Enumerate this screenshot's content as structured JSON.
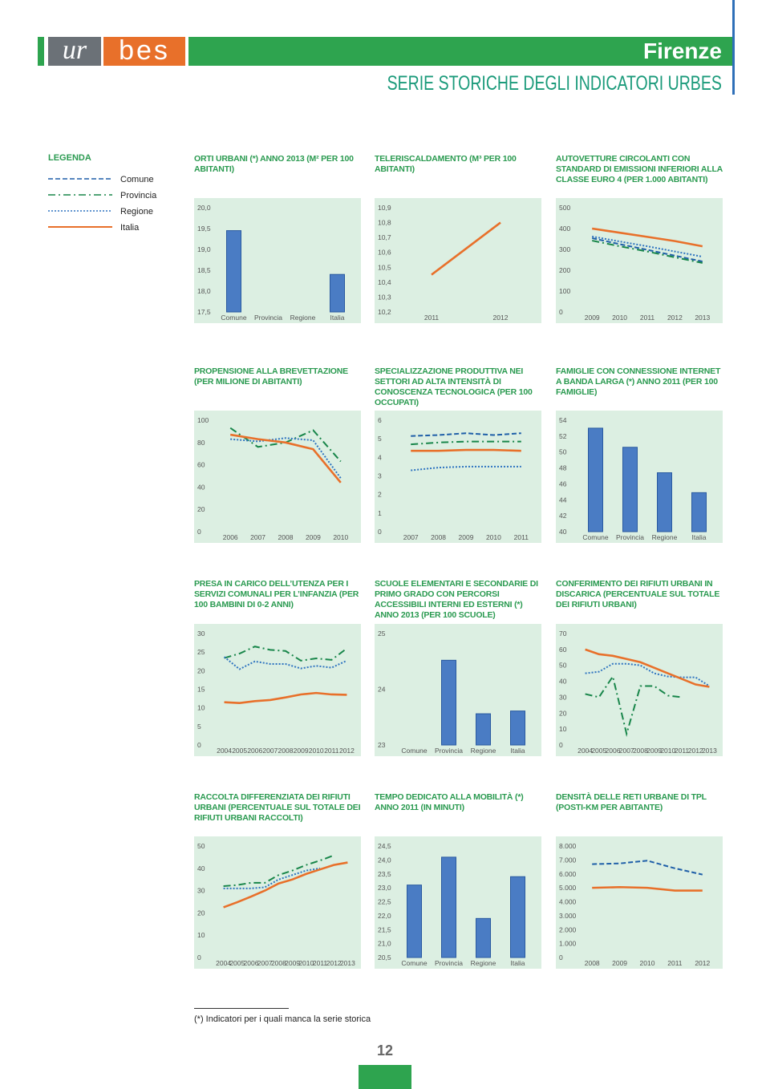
{
  "header": {
    "logo_left": "ur",
    "logo_right": "bes",
    "city": "Firenze",
    "subtitle": "SERIE STORICHE DEGLI INDICATORI URBES"
  },
  "legend": {
    "title": "LEGENDA",
    "items": [
      {
        "name": "Comune",
        "color": "#1f5fa8",
        "dash": "dashed"
      },
      {
        "name": "Provincia",
        "color": "#18864a",
        "dash": "dashdot"
      },
      {
        "name": "Regione",
        "color": "#2f74c0",
        "dash": "dotted"
      },
      {
        "name": "Italia",
        "color": "#e8702a",
        "dash": "solid"
      }
    ]
  },
  "chart_data": [
    {
      "type": "bar",
      "title": "ORTI URBANI (*) ANNO 2013 (M² PER 100 ABITANTI)",
      "color": "#4a7cc4",
      "categories": [
        "Comune",
        "Provincia",
        "Regione",
        "Italia"
      ],
      "values": [
        19.45,
        null,
        null,
        18.4
      ],
      "ylim": [
        17.5,
        20
      ],
      "yticks": [
        {
          "value": 17.5,
          "label": "17,5"
        },
        {
          "value": 18,
          "label": "18,0"
        },
        {
          "value": 18.5,
          "label": "18,5"
        },
        {
          "value": 19,
          "label": "19,0"
        },
        {
          "value": 19.5,
          "label": "19,5"
        },
        {
          "value": 20,
          "label": "20,0"
        }
      ]
    },
    {
      "type": "line",
      "title": "TELERISCALDAMENTO (M³ PER 100 ABITANTI)",
      "categories": [
        "2011",
        "2012"
      ],
      "series": [
        {
          "name": "Italia",
          "values": [
            10.45,
            10.8
          ]
        }
      ],
      "ylim": [
        10.2,
        10.9
      ],
      "yticks": [
        {
          "value": 10.2,
          "label": "10,2"
        },
        {
          "value": 10.3,
          "label": "10,3"
        },
        {
          "value": 10.4,
          "label": "10,4"
        },
        {
          "value": 10.5,
          "label": "10,5"
        },
        {
          "value": 10.6,
          "label": "10,6"
        },
        {
          "value": 10.7,
          "label": "10,7"
        },
        {
          "value": 10.8,
          "label": "10,8"
        },
        {
          "value": 10.9,
          "label": "10,9"
        }
      ]
    },
    {
      "type": "line",
      "title": "AUTOVETTURE CIRCOLANTI CON STANDARD DI EMISSIONI INFERIORI ALLA CLASSE EURO 4 (PER 1.000 ABITANTI)",
      "categories": [
        "2009",
        "2010",
        "2011",
        "2012",
        "2013"
      ],
      "series": [
        {
          "name": "Comune",
          "values": [
            354,
            325,
            298,
            270,
            242
          ]
        },
        {
          "name": "Provincia",
          "values": [
            342,
            315,
            290,
            262,
            235
          ]
        },
        {
          "name": "Regione",
          "values": [
            362,
            338,
            315,
            290,
            265
          ]
        },
        {
          "name": "Italia",
          "values": [
            400,
            380,
            360,
            340,
            315
          ]
        }
      ],
      "ylim": [
        0,
        500
      ],
      "yticks": [
        0,
        100,
        200,
        300,
        400,
        500
      ]
    },
    {
      "type": "line",
      "title": "PROPENSIONE ALLA BREVETTAZIONE (PER MILIONE DI ABITANTI)",
      "categories": [
        "2006",
        "2007",
        "2008",
        "2009",
        "2010"
      ],
      "series": [
        {
          "name": "Provincia",
          "values": [
            93,
            76,
            80,
            91,
            63
          ]
        },
        {
          "name": "Regione",
          "values": [
            83,
            81,
            84,
            82,
            48
          ]
        },
        {
          "name": "Italia",
          "values": [
            87,
            83,
            80,
            74,
            44
          ]
        }
      ],
      "ylim": [
        0,
        100
      ],
      "yticks": [
        0,
        20,
        40,
        60,
        80,
        100
      ]
    },
    {
      "type": "line",
      "title": "SPECIALIZZAZIONE PRODUTTIVA NEI SETTORI AD ALTA INTENSITÀ DI CONOSCENZA TECNOLOGICA (PER 100 OCCUPATI)",
      "categories": [
        "2007",
        "2008",
        "2009",
        "2010",
        "2011"
      ],
      "series": [
        {
          "name": "Comune",
          "values": [
            5.15,
            5.2,
            5.3,
            5.2,
            5.3
          ]
        },
        {
          "name": "Provincia",
          "values": [
            4.7,
            4.8,
            4.85,
            4.85,
            4.85
          ]
        },
        {
          "name": "Regione",
          "values": [
            3.3,
            3.45,
            3.5,
            3.5,
            3.5
          ]
        },
        {
          "name": "Italia",
          "values": [
            4.35,
            4.35,
            4.4,
            4.4,
            4.35
          ]
        }
      ],
      "ylim": [
        0,
        6
      ],
      "yticks": [
        0,
        1,
        2,
        3,
        4,
        5,
        6
      ]
    },
    {
      "type": "bar",
      "title": "FAMIGLIE CON CONNESSIONE INTERNET A BANDA LARGA (*) ANNO 2011 (PER 100 FAMIGLIE)",
      "color": "#4a7cc4",
      "categories": [
        "Comune",
        "Provincia",
        "Regione",
        "Italia"
      ],
      "values": [
        53,
        50.6,
        47.4,
        44.9
      ],
      "ylim": [
        40,
        54
      ],
      "yticks": [
        40,
        42,
        44,
        46,
        48,
        50,
        52,
        54
      ]
    },
    {
      "type": "line",
      "title": "PRESA IN CARICO DELL’UTENZA PER I SERVIZI COMUNALI PER L’INFANZIA (PER 100 BAMBINI DI 0-2 ANNI)",
      "categories": [
        "2004",
        "2005",
        "2006",
        "2007",
        "2008",
        "2009",
        "2010",
        "2011",
        "2012"
      ],
      "series": [
        {
          "name": "Provincia",
          "values": [
            23.4,
            24.6,
            26.5,
            25.6,
            25.3,
            22.7,
            23.3,
            22.9,
            26
          ]
        },
        {
          "name": "Regione",
          "values": [
            23.7,
            20.4,
            22.5,
            21.8,
            21.8,
            20.6,
            21.3,
            20.8,
            22.7
          ]
        },
        {
          "name": "Italia",
          "values": [
            11.5,
            11.3,
            11.8,
            12.1,
            12.8,
            13.6,
            14,
            13.6,
            13.5
          ]
        }
      ],
      "ylim": [
        0,
        30
      ],
      "yticks": [
        0,
        5,
        10,
        15,
        20,
        25,
        30
      ]
    },
    {
      "type": "bar",
      "title": "SCUOLE ELEMENTARI E SECONDARIE DI PRIMO GRADO CON PERCORSI ACCESSIBILI INTERNI ED ESTERNI (*) ANNO 2013 (PER 100 SCUOLE)",
      "color": "#4a7cc4",
      "categories": [
        "Comune",
        "Provincia",
        "Regione",
        "Italia"
      ],
      "values": [
        null,
        24.52,
        23.56,
        23.61
      ],
      "ylim": [
        23,
        25
      ],
      "yticks": [
        23,
        24,
        25
      ]
    },
    {
      "type": "line",
      "title": "CONFERIMENTO DEI RIFIUTI URBANI IN DISCARICA (PERCENTUALE SUL TOTALE DEI RIFIUTI URBANI)",
      "categories": [
        "2004",
        "2005",
        "2006",
        "2007",
        "2008",
        "2009",
        "2010",
        "2011",
        "2012",
        "2013"
      ],
      "series": [
        {
          "name": "Provincia",
          "values": [
            32,
            30,
            43,
            7,
            37,
            37,
            31,
            30,
            null,
            null
          ]
        },
        {
          "name": "Regione",
          "values": [
            45,
            46,
            51,
            51,
            50,
            45,
            43,
            42.5,
            42.5,
            37
          ]
        },
        {
          "name": "Italia",
          "values": [
            60,
            57,
            56,
            54,
            52,
            48.5,
            45,
            41.5,
            38,
            36.5
          ]
        }
      ],
      "ylim": [
        0,
        70
      ],
      "yticks": [
        0,
        10,
        20,
        30,
        40,
        50,
        60,
        70
      ]
    },
    {
      "type": "line",
      "title": "RACCOLTA DIFFERENZIATA DEI RIFIUTI URBANI (PERCENTUALE SUL TOTALE DEI RIFIUTI URBANI RACCOLTI)",
      "categories": [
        "2004",
        "2005",
        "2006",
        "2007",
        "2008",
        "2009",
        "2010",
        "2011",
        "2012",
        "2013"
      ],
      "series": [
        {
          "name": "Provincia",
          "values": [
            32,
            32.5,
            33.5,
            33.5,
            37,
            39,
            41.5,
            43.5,
            45.8,
            null
          ]
        },
        {
          "name": "Regione",
          "values": [
            31,
            31,
            31,
            31.5,
            35,
            37,
            39,
            40,
            null,
            null
          ]
        },
        {
          "name": "Italia",
          "values": [
            22.5,
            24.8,
            27.3,
            30,
            33.2,
            35,
            37.5,
            39.5,
            41.5,
            42.6
          ]
        }
      ],
      "ylim": [
        0,
        50
      ],
      "yticks": [
        0,
        10,
        20,
        30,
        40,
        50
      ]
    },
    {
      "type": "bar",
      "title": "TEMPO DEDICATO ALLA MOBILITÀ (*) ANNO 2011 (IN MINUTI)",
      "color": "#4a7cc4",
      "categories": [
        "Comune",
        "Provincia",
        "Regione",
        "Italia"
      ],
      "values": [
        23.1,
        24.1,
        21.9,
        23.4
      ],
      "ylim": [
        20.5,
        24.5
      ],
      "yticks": [
        {
          "value": 20.5,
          "label": "20,5"
        },
        {
          "value": 21,
          "label": "21,0"
        },
        {
          "value": 21.5,
          "label": "21,5"
        },
        {
          "value": 22,
          "label": "22,0"
        },
        {
          "value": 22.5,
          "label": "22,5"
        },
        {
          "value": 23,
          "label": "23,0"
        },
        {
          "value": 23.5,
          "label": "23,5"
        },
        {
          "value": 24,
          "label": "24,0"
        },
        {
          "value": 24.5,
          "label": "24,5"
        }
      ]
    },
    {
      "type": "line",
      "title": "DENSITÀ DELLE RETI URBANE DI TPL (POSTI-KM PER ABITANTE)",
      "categories": [
        "2008",
        "2009",
        "2010",
        "2011",
        "2012"
      ],
      "series": [
        {
          "name": "Comune",
          "values": [
            6700,
            6750,
            6950,
            6400,
            5950
          ]
        },
        {
          "name": "Italia",
          "values": [
            5000,
            5050,
            5000,
            4800,
            4800
          ]
        }
      ],
      "ylim": [
        0,
        8000
      ],
      "yticks": [
        0,
        {
          "value": 1000,
          "label": "1.000"
        },
        {
          "value": 2000,
          "label": "2.000"
        },
        {
          "value": 3000,
          "label": "3.000"
        },
        {
          "value": 4000,
          "label": "4.000"
        },
        {
          "value": 5000,
          "label": "5.000"
        },
        {
          "value": 6000,
          "label": "6.000"
        },
        {
          "value": 7000,
          "label": "7.000"
        },
        {
          "value": 8000,
          "label": "8.000"
        }
      ]
    }
  ],
  "footnote": "(*) Indicatori per i quali manca la serie storica",
  "page_number": "12"
}
